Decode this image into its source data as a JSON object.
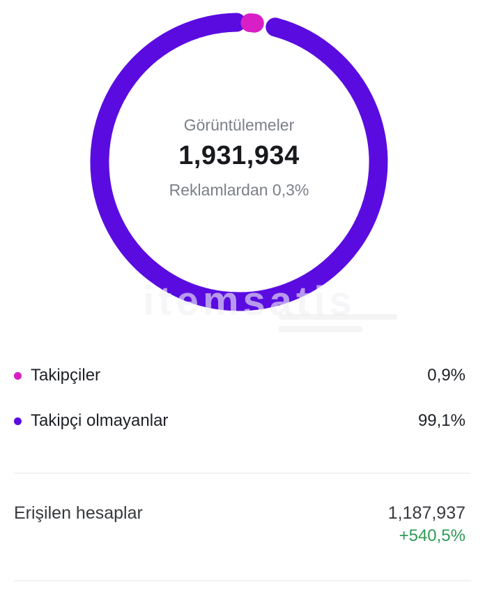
{
  "chart_data": {
    "type": "pie",
    "variant": "donut",
    "title": "Görüntülemeler",
    "center_value": 1931934,
    "center_value_display": "1,931,934",
    "subtitle": "Reklamlardan 0,3%",
    "segments": [
      {
        "label": "Takipçiler",
        "value_pct": 0.9,
        "display": "0,9%",
        "color": "#d81fc5"
      },
      {
        "label": "Takipçi olmayanlar",
        "value_pct": 99.1,
        "display": "99,1%",
        "color": "#5a0ce0"
      }
    ],
    "legend_position": "below"
  },
  "reached": {
    "label": "Erişilen hesaplar",
    "value": "1,187,937",
    "delta": "+540,5%",
    "delta_color": "#2e9b55"
  },
  "watermark": {
    "text": "itemsatis"
  }
}
